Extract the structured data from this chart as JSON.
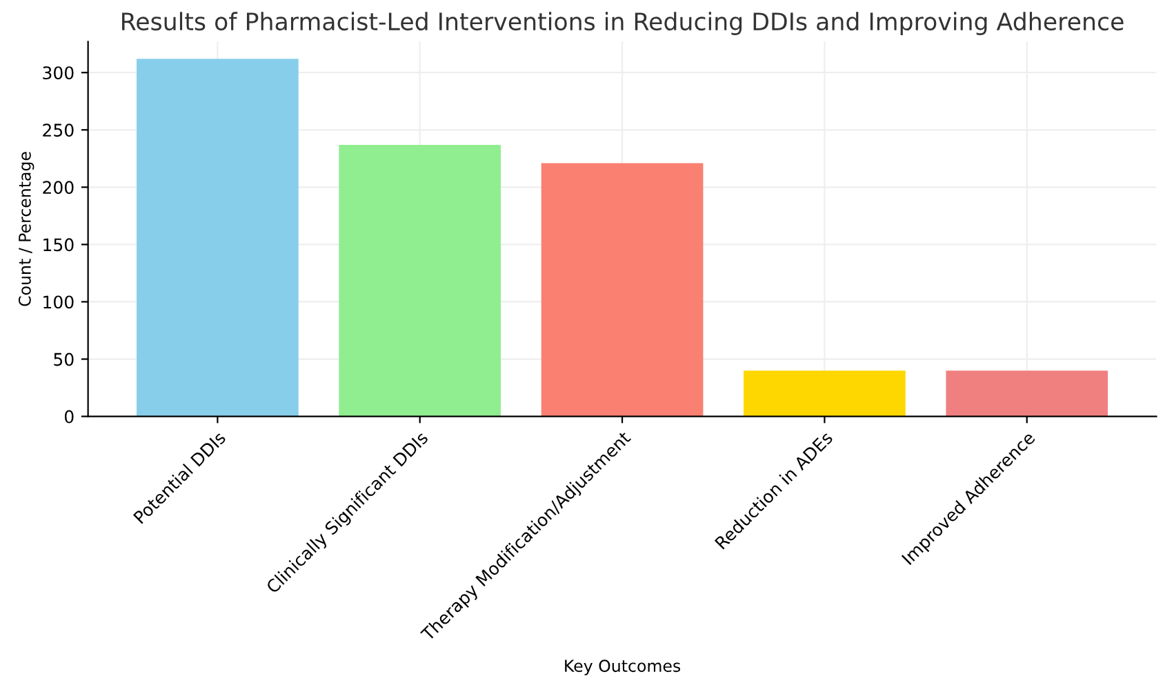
{
  "chart_data": {
    "type": "bar",
    "title": "Results of Pharmacist-Led Interventions in Reducing DDIs and Improving Adherence",
    "xlabel": "Key Outcomes",
    "ylabel": "Count / Percentage",
    "categories": [
      "Potential DDIs",
      "Clinically Significant DDIs",
      "Therapy Modification/Adjustment",
      "Reduction in ADEs",
      "Improved Adherence"
    ],
    "values": [
      312,
      237,
      221,
      40,
      40
    ],
    "colors": [
      "#87ceeb",
      "#90ee90",
      "#fa8072",
      "#ffd700",
      "#f08080"
    ],
    "ylim": [
      0,
      327
    ],
    "yticks": [
      0,
      50,
      100,
      150,
      200,
      250,
      300
    ],
    "grid": true
  }
}
